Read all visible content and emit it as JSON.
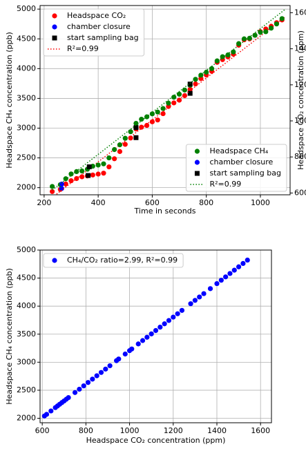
{
  "chart_data": [
    {
      "type": "scatter",
      "xlabel": "Time in seconds",
      "ylabel": "Headspace CH₄ concentration (ppb)",
      "y2label": "Headspace CO₂ concentration (ppm)",
      "xlim": [
        185,
        1110
      ],
      "xticks": [
        200,
        400,
        600,
        800,
        1000
      ],
      "ylim": [
        1880,
        5060
      ],
      "yticks": [
        2000,
        2500,
        3000,
        3500,
        4000,
        4500,
        5000
      ],
      "y2lim": [
        590,
        1640
      ],
      "y2ticks": [
        600,
        800,
        1000,
        1200,
        1400,
        1600
      ],
      "grid": true,
      "series": [
        {
          "name": "Headspace CO₂",
          "color": "#ff0000",
          "marker": "circle",
          "axis": "y2",
          "legend": "upper left",
          "x": [
            230,
            260,
            280,
            300,
            320,
            340,
            360,
            380,
            400,
            420,
            440,
            460,
            480,
            500,
            520,
            540,
            560,
            580,
            600,
            620,
            640,
            660,
            680,
            700,
            720,
            740,
            760,
            780,
            800,
            820,
            840,
            860,
            880,
            900,
            920,
            940,
            960,
            980,
            1000,
            1020,
            1040,
            1060,
            1080
          ],
          "values": [
            608,
            620,
            650,
            668,
            680,
            690,
            695,
            700,
            705,
            710,
            745,
            790,
            830,
            870,
            905,
            955,
            965,
            975,
            995,
            1005,
            1040,
            1080,
            1100,
            1115,
            1140,
            1175,
            1205,
            1235,
            1255,
            1275,
            1325,
            1340,
            1355,
            1370,
            1420,
            1450,
            1455,
            1475,
            1495,
            1510,
            1525,
            1545,
            1560
          ]
        },
        {
          "name": "chamber closure",
          "color": "#0000ff",
          "marker": "circle",
          "axis": "y2",
          "legend": "upper left",
          "x": [
            265
          ],
          "values": [
            625
          ]
        },
        {
          "name": "start sampling bag",
          "color": "#000000",
          "marker": "square",
          "axis": "y2",
          "legend": "upper left",
          "x": [
            363,
            540,
            740
          ],
          "values": [
            697,
            907,
            1153
          ]
        },
        {
          "name": "R²=0.99",
          "color": "#ff0000",
          "linestyle": "dotted",
          "axis": "y2",
          "legend": "upper left",
          "x": [
            230,
            1090
          ],
          "values": [
            575,
            1575
          ]
        },
        {
          "name": "Headspace CH₄",
          "color": "#008000",
          "marker": "circle",
          "axis": "y",
          "legend": "lower right",
          "x": [
            230,
            260,
            280,
            300,
            320,
            340,
            360,
            380,
            400,
            420,
            440,
            460,
            480,
            500,
            520,
            540,
            560,
            580,
            600,
            620,
            640,
            660,
            680,
            700,
            720,
            740,
            760,
            780,
            800,
            820,
            840,
            860,
            880,
            900,
            920,
            940,
            960,
            980,
            1000,
            1020,
            1040,
            1060,
            1080
          ],
          "values": [
            2020,
            2050,
            2150,
            2230,
            2270,
            2280,
            2310,
            2360,
            2380,
            2400,
            2500,
            2640,
            2720,
            2830,
            2940,
            3080,
            3150,
            3190,
            3240,
            3270,
            3330,
            3420,
            3520,
            3570,
            3640,
            3720,
            3820,
            3890,
            3940,
            4000,
            4130,
            4200,
            4230,
            4280,
            4420,
            4500,
            4510,
            4560,
            4610,
            4620,
            4680,
            4750,
            4840
          ]
        },
        {
          "name": "chamber closure",
          "color": "#0000ff",
          "marker": "circle",
          "axis": "y",
          "legend": "lower right",
          "x": [
            265
          ],
          "values": [
            2060
          ]
        },
        {
          "name": "start sampling bag",
          "color": "#000000",
          "marker": "square",
          "axis": "y",
          "legend": "lower right",
          "x": [
            367,
            540,
            740
          ],
          "values": [
            2350,
            3010,
            3740
          ]
        },
        {
          "name": "R²=0.99",
          "color": "#008000",
          "linestyle": "dotted",
          "axis": "y",
          "legend": "lower right",
          "x": [
            230,
            1090
          ],
          "values": [
            1960,
            4990
          ]
        }
      ]
    },
    {
      "type": "scatter",
      "xlabel": "Headspace CO₂ concentration (ppm)",
      "ylabel": "Headspace CH₄ concentration (ppb)",
      "xlim": [
        590,
        1650
      ],
      "xticks": [
        600,
        800,
        1000,
        1200,
        1400,
        1600
      ],
      "ylim": [
        1920,
        5000
      ],
      "yticks": [
        2000,
        2500,
        3000,
        3500,
        4000,
        4500,
        5000
      ],
      "grid": true,
      "series": [
        {
          "name": "CH₄/CO₂ ratio=2.99, R²=0.99",
          "color": "#0000ff",
          "marker": "circle",
          "axis": "y",
          "legend": "upper left",
          "x": [
            610,
            620,
            640,
            660,
            670,
            680,
            690,
            700,
            710,
            720,
            750,
            770,
            790,
            810,
            830,
            850,
            870,
            890,
            910,
            940,
            950,
            980,
            1000,
            1010,
            1040,
            1060,
            1080,
            1100,
            1120,
            1140,
            1160,
            1180,
            1200,
            1220,
            1240,
            1280,
            1300,
            1320,
            1340,
            1370,
            1400,
            1420,
            1440,
            1460,
            1480,
            1500,
            1520,
            1540
          ],
          "values": [
            2040,
            2070,
            2130,
            2190,
            2220,
            2250,
            2280,
            2309,
            2339,
            2369,
            2459,
            2518,
            2578,
            2638,
            2698,
            2758,
            2817,
            2877,
            2937,
            3027,
            3057,
            3146,
            3206,
            3236,
            3326,
            3386,
            3445,
            3505,
            3565,
            3625,
            3685,
            3744,
            3804,
            3864,
            3924,
            4043,
            4103,
            4163,
            4223,
            4312,
            4402,
            4462,
            4522,
            4582,
            4641,
            4701,
            4761,
            4821
          ]
        }
      ]
    }
  ]
}
